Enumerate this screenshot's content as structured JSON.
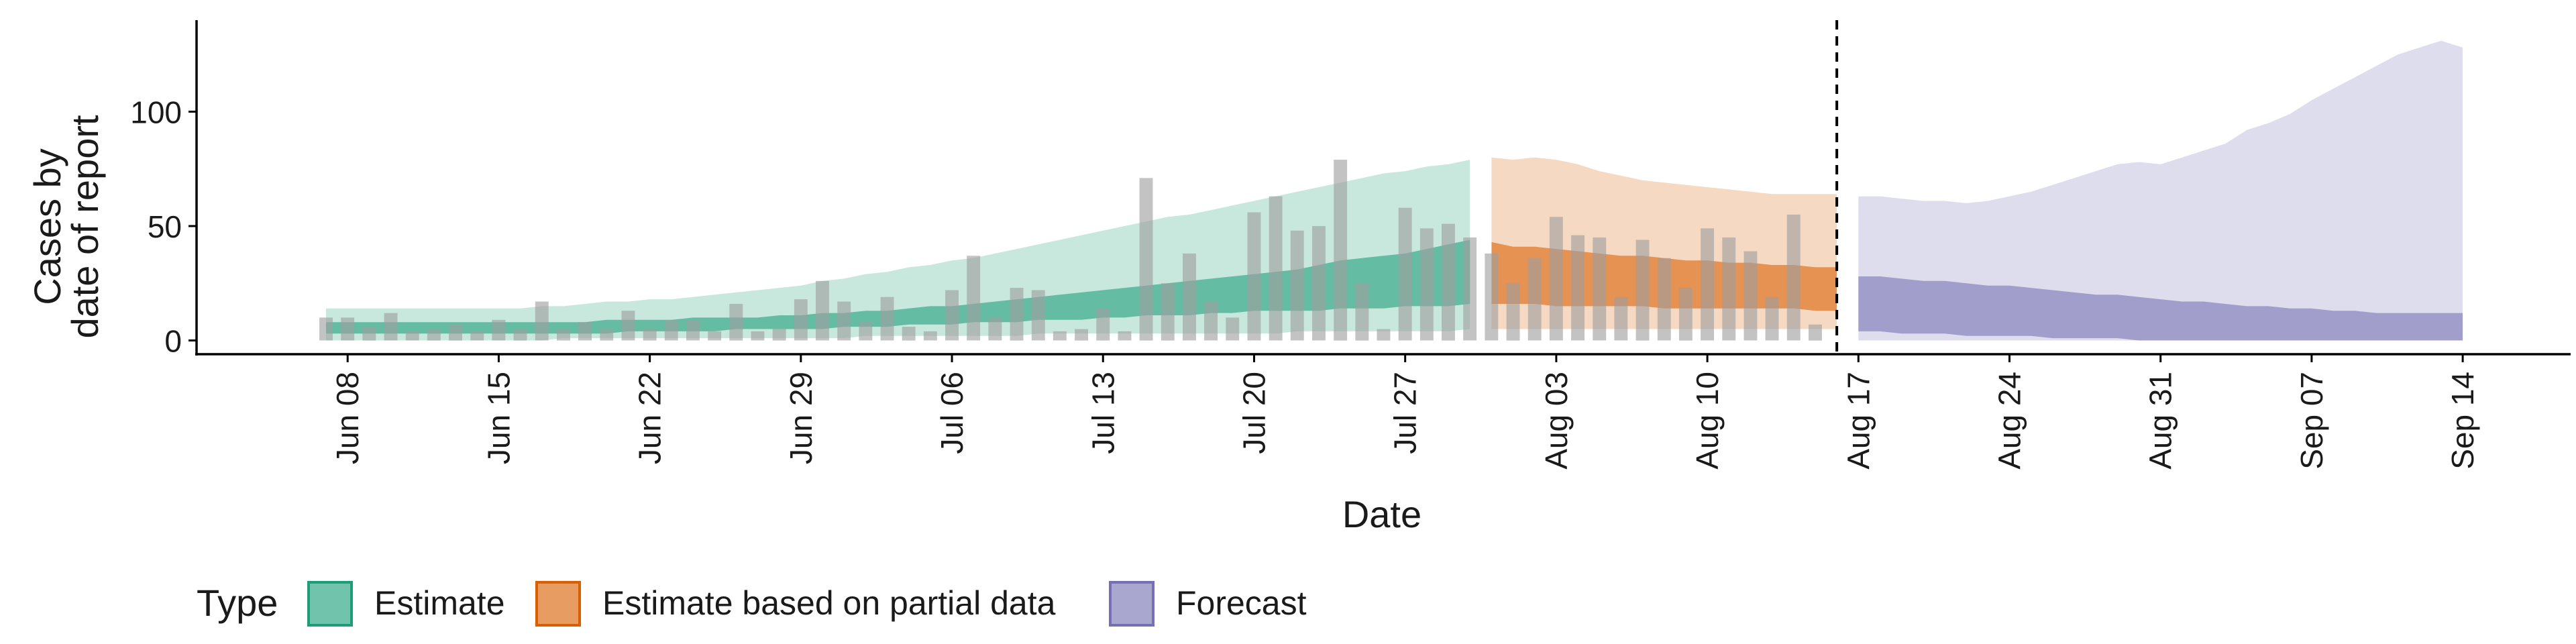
{
  "chart_data": {
    "type": "area",
    "xlabel": "Date",
    "ylabel_lines": [
      "Cases by",
      "date of report"
    ],
    "ylim": [
      -6,
      140
    ],
    "y_ticks": [
      0,
      50,
      100
    ],
    "x_tick_labels": [
      "Jun 08",
      "Jun 15",
      "Jun 22",
      "Jun 29",
      "Jul 06",
      "Jul 13",
      "Jul 20",
      "Jul 27",
      "Aug 03",
      "Aug 10",
      "Aug 17",
      "Aug 24",
      "Aug 31",
      "Sep 07",
      "Sep 14"
    ],
    "x_range": [
      "2020-06-01",
      "2020-09-19"
    ],
    "vline_date": "2020-08-16",
    "grid": false,
    "legend": {
      "title": "Type",
      "position": "bottom",
      "items": [
        {
          "label": "Estimate",
          "color": "#1b9e77"
        },
        {
          "label": "Estimate based on partial data",
          "color": "#d95f02"
        },
        {
          "label": "Forecast",
          "color": "#7570b3"
        }
      ]
    },
    "bars": {
      "color": "#9e9e9e",
      "start_date": "2020-06-07",
      "values": [
        10,
        10,
        6,
        12,
        4,
        5,
        7,
        4,
        9,
        5,
        17,
        5,
        8,
        5,
        13,
        5,
        9,
        9,
        4,
        16,
        4,
        5,
        18,
        26,
        17,
        8,
        19,
        6,
        4,
        22,
        37,
        10,
        23,
        22,
        4,
        5,
        14,
        4,
        71,
        25,
        38,
        17,
        10,
        56,
        63,
        48,
        50,
        79,
        25,
        5,
        58,
        49,
        51,
        45,
        38,
        25,
        36,
        54,
        46,
        45,
        19,
        44,
        36,
        23,
        49,
        45,
        39,
        19,
        55,
        7
      ]
    },
    "series": [
      {
        "name": "Estimate",
        "color": "#1b9e77",
        "start_date": "2020-06-07",
        "outer_low": [
          0,
          0,
          0,
          0,
          0,
          0,
          0,
          0,
          0,
          0,
          0,
          1,
          1,
          1,
          1,
          1,
          1,
          1,
          1,
          1,
          1,
          1,
          1,
          1,
          1,
          2,
          2,
          2,
          2,
          2,
          2,
          2,
          2,
          3,
          3,
          3,
          3,
          3,
          3,
          3,
          3,
          3,
          3,
          3,
          3,
          4,
          4,
          4,
          4,
          4,
          4,
          4,
          4,
          5
        ],
        "outer_high": [
          14,
          14,
          14,
          14,
          14,
          14,
          14,
          14,
          14,
          14,
          15,
          15,
          16,
          17,
          17,
          18,
          18,
          19,
          20,
          21,
          22,
          23,
          24,
          26,
          27,
          29,
          30,
          32,
          33,
          35,
          36,
          38,
          40,
          42,
          44,
          46,
          48,
          50,
          52,
          54,
          55,
          57,
          59,
          61,
          63,
          65,
          67,
          69,
          71,
          73,
          74,
          76,
          77,
          79
        ],
        "inner_low": [
          3,
          3,
          3,
          3,
          3,
          3,
          3,
          3,
          3,
          3,
          3,
          3,
          3,
          3,
          4,
          4,
          4,
          4,
          4,
          5,
          5,
          5,
          5,
          5,
          6,
          6,
          6,
          7,
          7,
          7,
          8,
          8,
          8,
          9,
          9,
          9,
          10,
          10,
          11,
          11,
          11,
          12,
          12,
          13,
          13,
          13,
          13,
          14,
          14,
          14,
          15,
          15,
          15,
          16
        ],
        "inner_high": [
          8,
          8,
          8,
          8,
          8,
          8,
          8,
          8,
          8,
          8,
          8,
          8,
          8,
          9,
          9,
          9,
          9,
          10,
          10,
          10,
          10,
          11,
          11,
          12,
          12,
          13,
          13,
          14,
          15,
          15,
          16,
          17,
          18,
          19,
          20,
          21,
          22,
          23,
          24,
          25,
          26,
          27,
          28,
          29,
          30,
          31,
          33,
          35,
          36,
          37,
          38,
          40,
          42,
          44
        ]
      },
      {
        "name": "Estimate based on partial data",
        "color": "#d95f02",
        "start_date": "2020-07-31",
        "outer_low": [
          5,
          5,
          5,
          5,
          5,
          5,
          5,
          5,
          5,
          5,
          5,
          5,
          5,
          5,
          5,
          5,
          5
        ],
        "outer_high": [
          80,
          79,
          80,
          79,
          77,
          74,
          72,
          70,
          69,
          68,
          67,
          66,
          65,
          64,
          64,
          64,
          64
        ],
        "inner_low": [
          16,
          16,
          16,
          15,
          15,
          15,
          15,
          15,
          14,
          14,
          14,
          14,
          14,
          14,
          14,
          13,
          13
        ],
        "inner_high": [
          43,
          41,
          41,
          40,
          39,
          38,
          37,
          37,
          36,
          35,
          35,
          34,
          34,
          33,
          33,
          32,
          32
        ]
      },
      {
        "name": "Forecast",
        "color": "#7570b3",
        "start_date": "2020-08-17",
        "outer_low": [
          0,
          0,
          0,
          0,
          0,
          0,
          0,
          0,
          0,
          0,
          0,
          0,
          0,
          0,
          0,
          0,
          0,
          0,
          0,
          0,
          0,
          0,
          0,
          0,
          0,
          0,
          0,
          0,
          0
        ],
        "outer_high": [
          63,
          63,
          62,
          61,
          61,
          60,
          61,
          63,
          65,
          68,
          71,
          74,
          77,
          78,
          77,
          80,
          83,
          86,
          92,
          95,
          99,
          105,
          110,
          115,
          120,
          125,
          128,
          131,
          128
        ],
        "inner_low": [
          4,
          4,
          3,
          3,
          3,
          2,
          2,
          2,
          2,
          1,
          1,
          1,
          1,
          0,
          0,
          0,
          0,
          0,
          0,
          0,
          0,
          0,
          0,
          0,
          0,
          0,
          0,
          0,
          0
        ],
        "inner_high": [
          28,
          28,
          27,
          26,
          26,
          25,
          24,
          24,
          23,
          22,
          21,
          20,
          20,
          19,
          18,
          17,
          17,
          16,
          15,
          15,
          14,
          14,
          13,
          13,
          12,
          12,
          12,
          12,
          12
        ]
      }
    ]
  }
}
